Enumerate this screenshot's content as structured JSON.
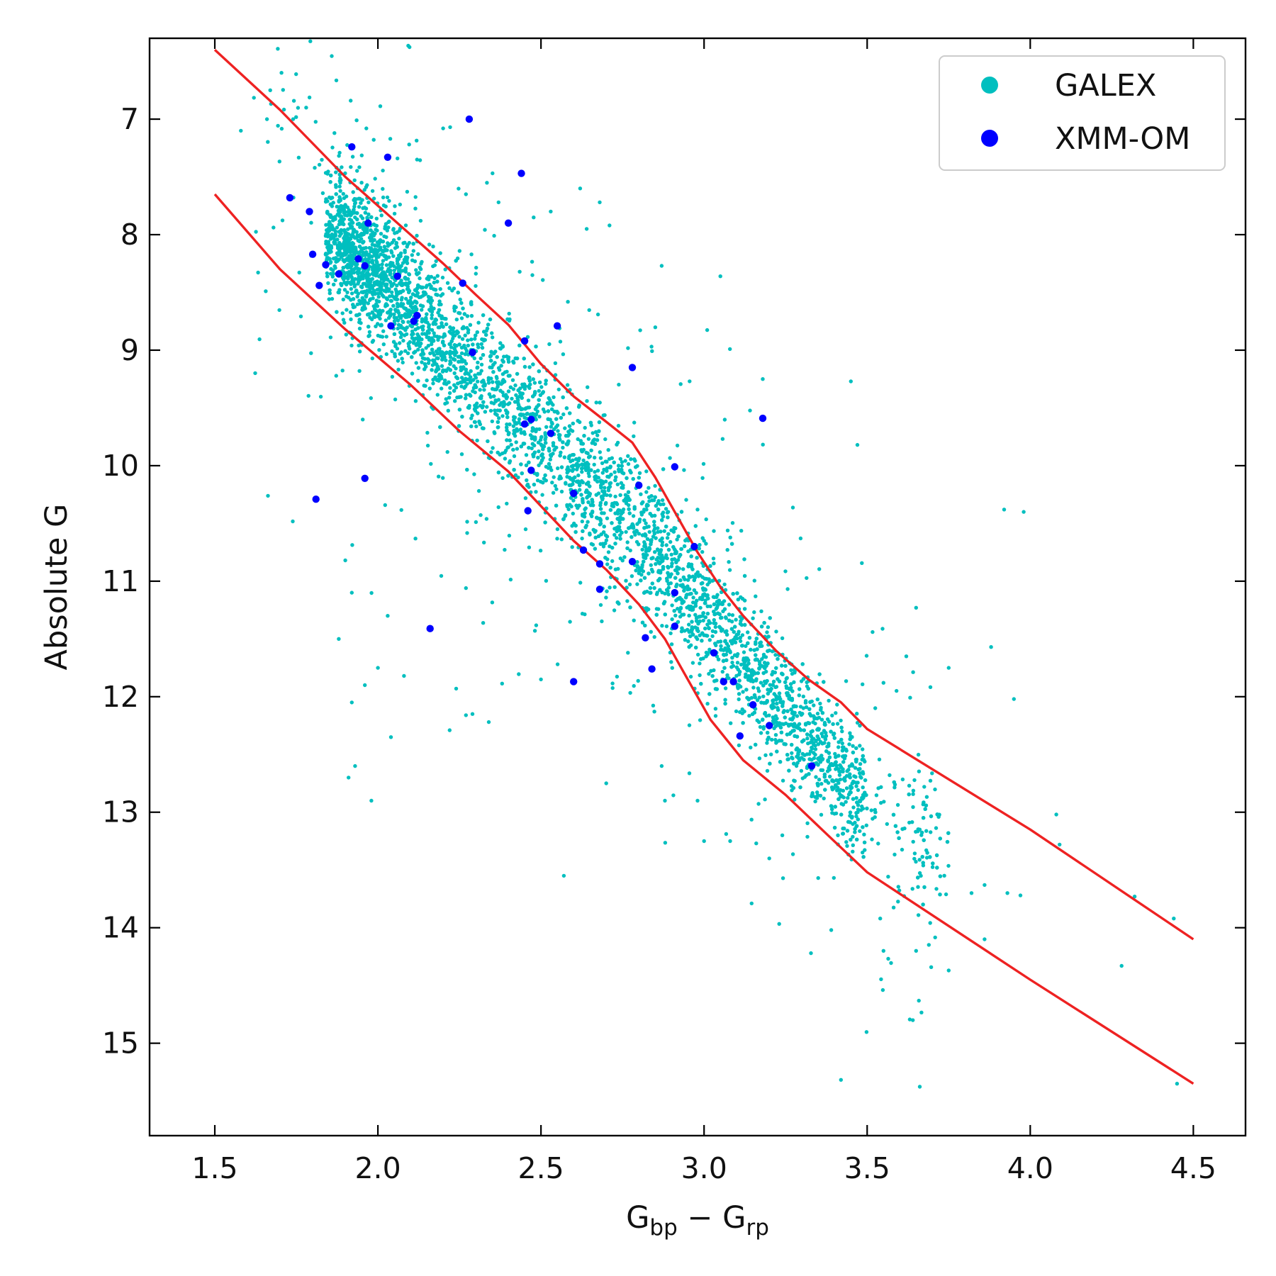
{
  "chart_data": {
    "type": "scatter",
    "title": "",
    "xlabel": {
      "base": "G",
      "sub1": "bp",
      "op": " − ",
      "base2": "G",
      "sub2": "rp"
    },
    "ylabel": "Absolute G",
    "xlim": [
      1.3,
      4.66
    ],
    "ylim": [
      15.8,
      6.3
    ],
    "y_inverted": true,
    "xticks": [
      {
        "value": 1.5,
        "label": "1.5"
      },
      {
        "value": 2.0,
        "label": "2.0"
      },
      {
        "value": 2.5,
        "label": "2.5"
      },
      {
        "value": 3.0,
        "label": "3.0"
      },
      {
        "value": 3.5,
        "label": "3.5"
      },
      {
        "value": 4.0,
        "label": "4.0"
      },
      {
        "value": 4.5,
        "label": "4.5"
      }
    ],
    "yticks": [
      {
        "value": 7,
        "label": "7"
      },
      {
        "value": 8,
        "label": "8"
      },
      {
        "value": 9,
        "label": "9"
      },
      {
        "value": 10,
        "label": "10"
      },
      {
        "value": 11,
        "label": "11"
      },
      {
        "value": 12,
        "label": "12"
      },
      {
        "value": 13,
        "label": "13"
      },
      {
        "value": 14,
        "label": "14"
      },
      {
        "value": 15,
        "label": "15"
      }
    ],
    "legend": {
      "placement": "top-right",
      "entries": [
        {
          "label": "GALEX",
          "color": "#00bfbf"
        },
        {
          "label": "XMM-OM",
          "color": "#0000ff"
        }
      ]
    },
    "series": [
      {
        "name": "GALEX",
        "color": "#00bfbf",
        "marker": "dot",
        "approx_count": 6000,
        "density_model": {
          "ridge": [
            [
              1.86,
              8.0
            ],
            [
              2.0,
              8.35
            ],
            [
              2.2,
              8.95
            ],
            [
              2.4,
              9.45
            ],
            [
              2.6,
              10.05
            ],
            [
              2.8,
              10.6
            ],
            [
              3.0,
              11.25
            ],
            [
              3.2,
              11.95
            ],
            [
              3.4,
              12.6
            ],
            [
              3.6,
              13.15
            ],
            [
              3.8,
              13.5
            ]
          ],
          "width_mag": [
            [
              1.86,
              0.38
            ],
            [
              2.5,
              0.5
            ],
            [
              3.0,
              0.48
            ],
            [
              3.6,
              0.4
            ]
          ],
          "counts": {
            "core": 4600,
            "bright_cluster": 600,
            "outliers": 450
          }
        },
        "points": [
          [
            1.58,
            7.1
          ],
          [
            1.66,
            7.0
          ],
          [
            1.67,
            6.75
          ],
          [
            1.74,
            7.0
          ],
          [
            1.78,
            6.9
          ],
          [
            1.95,
            7.55
          ],
          [
            2.06,
            7.34
          ],
          [
            2.12,
            7.35
          ],
          [
            2.2,
            7.08
          ],
          [
            2.27,
            7.65
          ],
          [
            2.37,
            7.72
          ],
          [
            2.53,
            7.8
          ],
          [
            2.62,
            7.6
          ],
          [
            2.64,
            7.95
          ],
          [
            2.68,
            7.72
          ],
          [
            2.71,
            7.92
          ],
          [
            2.87,
            8.27
          ],
          [
            3.05,
            8.36
          ],
          [
            3.18,
            9.25
          ],
          [
            3.45,
            9.27
          ],
          [
            3.47,
            9.82
          ],
          [
            3.92,
            10.38
          ],
          [
            3.98,
            10.4
          ],
          [
            3.88,
            11.57
          ],
          [
            3.95,
            12.02
          ],
          [
            3.75,
            11.75
          ],
          [
            3.55,
            11.88
          ],
          [
            3.65,
            11.23
          ],
          [
            3.62,
            11.65
          ],
          [
            3.82,
            13.7
          ],
          [
            3.86,
            13.63
          ],
          [
            3.93,
            13.7
          ],
          [
            3.97,
            13.72
          ],
          [
            4.08,
            13.02
          ],
          [
            4.09,
            13.28
          ],
          [
            4.32,
            13.73
          ],
          [
            4.44,
            13.92
          ],
          [
            4.28,
            14.33
          ],
          [
            4.45,
            15.35
          ],
          [
            3.64,
            14.8
          ],
          [
            3.86,
            14.1
          ],
          [
            3.75,
            14.37
          ],
          [
            3.55,
            14.2
          ],
          [
            3.65,
            14.2
          ],
          [
            3.39,
            14.02
          ],
          [
            3.54,
            13.92
          ],
          [
            2.57,
            13.55
          ],
          [
            1.92,
            12.05
          ],
          [
            1.91,
            12.7
          ],
          [
            1.98,
            12.9
          ],
          [
            1.93,
            12.6
          ],
          [
            2.22,
            12.29
          ],
          [
            2.29,
            12.15
          ],
          [
            2.34,
            12.22
          ],
          [
            2.04,
            12.35
          ],
          [
            1.88,
            11.5
          ],
          [
            1.9,
            10.82
          ],
          [
            1.92,
            11.1
          ],
          [
            2.03,
            11.3
          ],
          [
            2.08,
            11.82
          ],
          [
            2.0,
            11.75
          ],
          [
            1.96,
            11.9
          ],
          [
            2.27,
            11.06
          ],
          [
            2.27,
            12.16
          ],
          [
            2.24,
            11.93
          ],
          [
            2.5,
            11.85
          ],
          [
            2.88,
            12.9
          ],
          [
            2.87,
            12.6
          ],
          [
            2.98,
            12.9
          ],
          [
            2.7,
            12.75
          ],
          [
            3.0,
            13.25
          ],
          [
            3.08,
            13.25
          ],
          [
            3.16,
            13.27
          ],
          [
            3.2,
            13.4
          ],
          [
            3.24,
            13.2
          ],
          [
            3.35,
            13.57
          ],
          [
            2.98,
            10.38
          ],
          [
            2.89,
            10.4
          ],
          [
            3.0,
            10.65
          ]
        ]
      },
      {
        "name": "XMM-OM",
        "color": "#0000ff",
        "marker": "dot",
        "points": [
          [
            1.73,
            7.68
          ],
          [
            1.79,
            7.8
          ],
          [
            1.8,
            8.17
          ],
          [
            1.84,
            8.26
          ],
          [
            1.82,
            8.44
          ],
          [
            1.88,
            8.34
          ],
          [
            1.92,
            7.24
          ],
          [
            1.94,
            8.21
          ],
          [
            1.96,
            8.27
          ],
          [
            1.97,
            7.9
          ],
          [
            2.03,
            7.33
          ],
          [
            2.04,
            8.79
          ],
          [
            2.06,
            8.36
          ],
          [
            2.12,
            8.7
          ],
          [
            2.11,
            8.75
          ],
          [
            2.26,
            8.42
          ],
          [
            2.28,
            7.0
          ],
          [
            2.29,
            9.02
          ],
          [
            2.4,
            7.9
          ],
          [
            2.44,
            7.47
          ],
          [
            2.45,
            9.64
          ],
          [
            2.45,
            8.92
          ],
          [
            2.47,
            9.6
          ],
          [
            2.47,
            10.04
          ],
          [
            2.46,
            10.39
          ],
          [
            2.53,
            9.72
          ],
          [
            2.55,
            8.79
          ],
          [
            2.6,
            10.24
          ],
          [
            2.6,
            11.87
          ],
          [
            2.63,
            10.73
          ],
          [
            2.68,
            10.85
          ],
          [
            2.68,
            11.07
          ],
          [
            2.78,
            9.15
          ],
          [
            2.78,
            10.83
          ],
          [
            2.8,
            10.17
          ],
          [
            2.82,
            11.49
          ],
          [
            2.84,
            11.76
          ],
          [
            2.91,
            10.01
          ],
          [
            2.91,
            11.1
          ],
          [
            2.91,
            11.39
          ],
          [
            2.97,
            10.7
          ],
          [
            3.03,
            11.62
          ],
          [
            3.06,
            11.87
          ],
          [
            3.09,
            11.87
          ],
          [
            3.11,
            12.34
          ],
          [
            3.15,
            12.07
          ],
          [
            3.18,
            9.59
          ],
          [
            3.2,
            12.25
          ],
          [
            3.33,
            12.6
          ],
          [
            1.81,
            10.29
          ],
          [
            1.96,
            10.11
          ],
          [
            2.16,
            11.41
          ]
        ]
      },
      {
        "name": "upper envelope",
        "color": "#ee2222",
        "type": "line",
        "points": [
          [
            1.5,
            6.4
          ],
          [
            1.7,
            6.92
          ],
          [
            1.9,
            7.5
          ],
          [
            2.1,
            8.0
          ],
          [
            2.2,
            8.25
          ],
          [
            2.3,
            8.52
          ],
          [
            2.4,
            8.78
          ],
          [
            2.5,
            9.12
          ],
          [
            2.6,
            9.4
          ],
          [
            2.7,
            9.62
          ],
          [
            2.78,
            9.8
          ],
          [
            2.85,
            10.1
          ],
          [
            2.92,
            10.45
          ],
          [
            2.98,
            10.75
          ],
          [
            3.05,
            11.05
          ],
          [
            3.12,
            11.3
          ],
          [
            3.22,
            11.6
          ],
          [
            3.32,
            11.85
          ],
          [
            3.42,
            12.05
          ],
          [
            3.5,
            12.28
          ],
          [
            4.0,
            13.15
          ],
          [
            4.5,
            14.1
          ]
        ]
      },
      {
        "name": "lower envelope",
        "color": "#ee2222",
        "type": "line",
        "points": [
          [
            1.5,
            7.65
          ],
          [
            1.7,
            8.3
          ],
          [
            1.9,
            8.82
          ],
          [
            2.1,
            9.3
          ],
          [
            2.25,
            9.7
          ],
          [
            2.4,
            10.05
          ],
          [
            2.5,
            10.35
          ],
          [
            2.6,
            10.65
          ],
          [
            2.7,
            10.9
          ],
          [
            2.8,
            11.2
          ],
          [
            2.88,
            11.5
          ],
          [
            2.95,
            11.85
          ],
          [
            3.02,
            12.2
          ],
          [
            3.12,
            12.55
          ],
          [
            3.25,
            12.85
          ],
          [
            3.38,
            13.2
          ],
          [
            3.5,
            13.52
          ],
          [
            4.0,
            14.45
          ],
          [
            4.5,
            15.35
          ]
        ]
      }
    ]
  }
}
